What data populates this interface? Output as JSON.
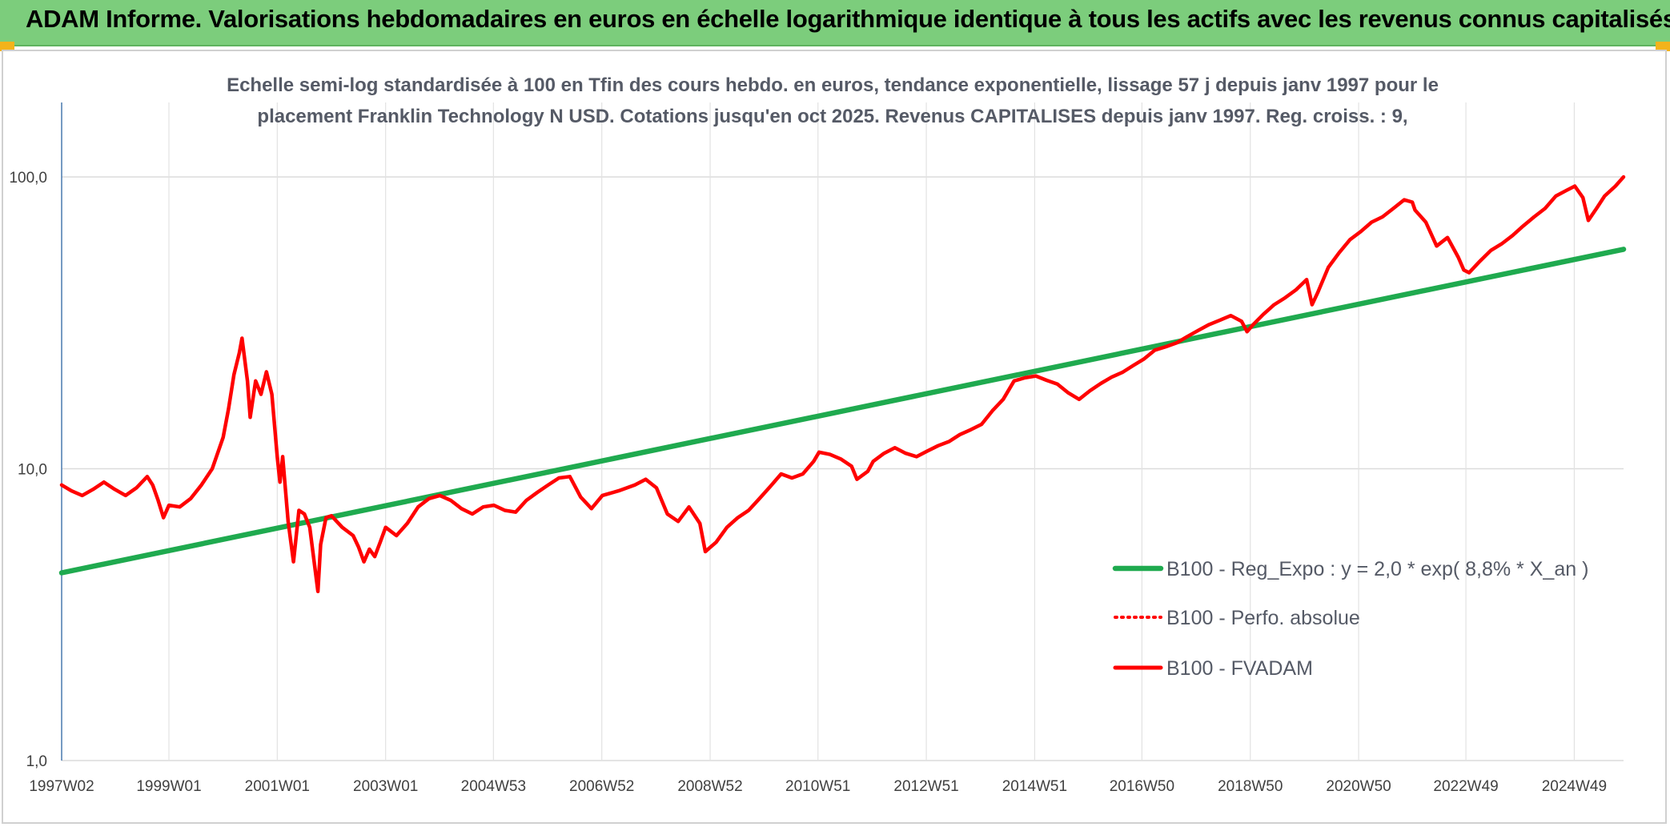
{
  "header": {
    "title": "ADAM Informe. Valorisations hebdomadaires en euros en échelle logarithmique identique à tous les actifs avec les revenus connus capitalisés"
  },
  "colors": {
    "banner": "#7ccd7c",
    "accent_corner": "#f3b31b",
    "trend": "#1faa4f",
    "perf": "#ff0000"
  },
  "chart_data": {
    "type": "line",
    "title_lines": [
      "Echelle semi-log standardisée à 100 en Tfin des cours hebdo. en euros, tendance exponentielle, lissage 57 j depuis janv 1997 pour le",
      "placement Franklin Technology N USD. Cotations jusqu'en oct 2025. Revenus CAPITALISES depuis janv 1997. Reg. croiss. : 9,"
    ],
    "y_scale": "log",
    "ylim": [
      1,
      180
    ],
    "y_ticks": [
      {
        "value": 1,
        "label": "1,0"
      },
      {
        "value": 10,
        "label": "10,0"
      },
      {
        "value": 100,
        "label": "100,0"
      }
    ],
    "xlim": [
      1997.02,
      2025.85
    ],
    "x_ticks": [
      {
        "value": 1997.02,
        "label": "1997W02"
      },
      {
        "value": 1999.0,
        "label": "1999W01"
      },
      {
        "value": 2001.0,
        "label": "2001W01"
      },
      {
        "value": 2003.0,
        "label": "2003W01"
      },
      {
        "value": 2004.99,
        "label": "2004W53"
      },
      {
        "value": 2006.99,
        "label": "2006W52"
      },
      {
        "value": 2008.99,
        "label": "2008W52"
      },
      {
        "value": 2010.98,
        "label": "2010W51"
      },
      {
        "value": 2012.98,
        "label": "2012W51"
      },
      {
        "value": 2014.98,
        "label": "2014W51"
      },
      {
        "value": 2016.96,
        "label": "2016W50"
      },
      {
        "value": 2018.96,
        "label": "2018W50"
      },
      {
        "value": 2020.96,
        "label": "2020W50"
      },
      {
        "value": 2022.94,
        "label": "2022W49"
      },
      {
        "value": 2024.94,
        "label": "2024W49"
      }
    ],
    "grid": true,
    "legend_position": "bottom-right",
    "series": [
      {
        "name": "B100 - Reg_Expo : y = 2,0 * exp( 8,8% *  X_an )",
        "style": "solid-thick",
        "color": "#1faa4f",
        "points": [
          [
            1997.02,
            4.4
          ],
          [
            2025.85,
            56.5
          ]
        ]
      },
      {
        "name": "B100 - Perfo. absolue",
        "style": "dotted",
        "color": "#ff0000",
        "points": []
      },
      {
        "name": "B100 - FVADAM",
        "style": "solid",
        "color": "#ff0000",
        "points": [
          [
            1997.02,
            8.8
          ],
          [
            1997.2,
            8.4
          ],
          [
            1997.4,
            8.1
          ],
          [
            1997.6,
            8.5
          ],
          [
            1997.8,
            9.0
          ],
          [
            1998.0,
            8.5
          ],
          [
            1998.2,
            8.1
          ],
          [
            1998.4,
            8.6
          ],
          [
            1998.6,
            9.4
          ],
          [
            1998.7,
            8.8
          ],
          [
            1998.8,
            7.8
          ],
          [
            1998.9,
            6.8
          ],
          [
            1999.0,
            7.5
          ],
          [
            1999.2,
            7.4
          ],
          [
            1999.4,
            7.9
          ],
          [
            1999.6,
            8.8
          ],
          [
            1999.8,
            10.0
          ],
          [
            2000.0,
            12.8
          ],
          [
            2000.1,
            16.0
          ],
          [
            2000.2,
            21.0
          ],
          [
            2000.3,
            25.0
          ],
          [
            2000.35,
            28.0
          ],
          [
            2000.45,
            20.0
          ],
          [
            2000.5,
            15.0
          ],
          [
            2000.6,
            20.0
          ],
          [
            2000.7,
            18.0
          ],
          [
            2000.8,
            21.5
          ],
          [
            2000.9,
            18.0
          ],
          [
            2001.0,
            11.0
          ],
          [
            2001.05,
            9.0
          ],
          [
            2001.1,
            11.0
          ],
          [
            2001.2,
            6.6
          ],
          [
            2001.3,
            4.8
          ],
          [
            2001.4,
            7.2
          ],
          [
            2001.5,
            7.0
          ],
          [
            2001.6,
            6.3
          ],
          [
            2001.7,
            4.5
          ],
          [
            2001.75,
            3.8
          ],
          [
            2001.8,
            5.5
          ],
          [
            2001.9,
            6.8
          ],
          [
            2002.0,
            6.9
          ],
          [
            2002.2,
            6.3
          ],
          [
            2002.4,
            5.9
          ],
          [
            2002.5,
            5.4
          ],
          [
            2002.6,
            4.8
          ],
          [
            2002.7,
            5.3
          ],
          [
            2002.8,
            5.0
          ],
          [
            2002.9,
            5.6
          ],
          [
            2003.0,
            6.3
          ],
          [
            2003.2,
            5.9
          ],
          [
            2003.4,
            6.5
          ],
          [
            2003.6,
            7.4
          ],
          [
            2003.8,
            7.9
          ],
          [
            2004.0,
            8.1
          ],
          [
            2004.2,
            7.8
          ],
          [
            2004.4,
            7.3
          ],
          [
            2004.6,
            7.0
          ],
          [
            2004.8,
            7.4
          ],
          [
            2005.0,
            7.5
          ],
          [
            2005.2,
            7.2
          ],
          [
            2005.4,
            7.1
          ],
          [
            2005.6,
            7.8
          ],
          [
            2005.8,
            8.3
          ],
          [
            2006.0,
            8.8
          ],
          [
            2006.2,
            9.3
          ],
          [
            2006.4,
            9.4
          ],
          [
            2006.6,
            8.0
          ],
          [
            2006.8,
            7.3
          ],
          [
            2007.0,
            8.1
          ],
          [
            2007.3,
            8.4
          ],
          [
            2007.6,
            8.8
          ],
          [
            2007.8,
            9.2
          ],
          [
            2008.0,
            8.6
          ],
          [
            2008.2,
            7.0
          ],
          [
            2008.4,
            6.6
          ],
          [
            2008.6,
            7.4
          ],
          [
            2008.8,
            6.5
          ],
          [
            2008.9,
            5.2
          ],
          [
            2009.1,
            5.6
          ],
          [
            2009.3,
            6.3
          ],
          [
            2009.5,
            6.8
          ],
          [
            2009.7,
            7.2
          ],
          [
            2009.9,
            7.9
          ],
          [
            2010.1,
            8.7
          ],
          [
            2010.3,
            9.6
          ],
          [
            2010.5,
            9.3
          ],
          [
            2010.7,
            9.6
          ],
          [
            2010.9,
            10.6
          ],
          [
            2011.0,
            11.4
          ],
          [
            2011.2,
            11.2
          ],
          [
            2011.4,
            10.8
          ],
          [
            2011.6,
            10.2
          ],
          [
            2011.7,
            9.2
          ],
          [
            2011.9,
            9.8
          ],
          [
            2012.0,
            10.6
          ],
          [
            2012.2,
            11.3
          ],
          [
            2012.4,
            11.8
          ],
          [
            2012.6,
            11.3
          ],
          [
            2012.8,
            11.0
          ],
          [
            2013.0,
            11.5
          ],
          [
            2013.2,
            12.0
          ],
          [
            2013.4,
            12.4
          ],
          [
            2013.6,
            13.1
          ],
          [
            2013.8,
            13.6
          ],
          [
            2014.0,
            14.2
          ],
          [
            2014.2,
            15.8
          ],
          [
            2014.4,
            17.3
          ],
          [
            2014.6,
            20.0
          ],
          [
            2014.8,
            20.5
          ],
          [
            2015.0,
            20.8
          ],
          [
            2015.2,
            20.1
          ],
          [
            2015.4,
            19.5
          ],
          [
            2015.6,
            18.2
          ],
          [
            2015.8,
            17.3
          ],
          [
            2016.0,
            18.5
          ],
          [
            2016.2,
            19.6
          ],
          [
            2016.4,
            20.6
          ],
          [
            2016.6,
            21.4
          ],
          [
            2016.8,
            22.6
          ],
          [
            2017.0,
            23.8
          ],
          [
            2017.2,
            25.5
          ],
          [
            2017.4,
            26.2
          ],
          [
            2017.6,
            27.0
          ],
          [
            2017.8,
            28.4
          ],
          [
            2018.0,
            29.8
          ],
          [
            2018.2,
            31.2
          ],
          [
            2018.4,
            32.3
          ],
          [
            2018.6,
            33.5
          ],
          [
            2018.8,
            32.0
          ],
          [
            2018.9,
            29.5
          ],
          [
            2019.0,
            31.0
          ],
          [
            2019.2,
            33.8
          ],
          [
            2019.4,
            36.5
          ],
          [
            2019.6,
            38.5
          ],
          [
            2019.8,
            41.0
          ],
          [
            2020.0,
            44.5
          ],
          [
            2020.1,
            36.5
          ],
          [
            2020.2,
            40.0
          ],
          [
            2020.4,
            49.0
          ],
          [
            2020.6,
            55.0
          ],
          [
            2020.8,
            61.0
          ],
          [
            2021.0,
            65.0
          ],
          [
            2021.2,
            70.0
          ],
          [
            2021.4,
            73.0
          ],
          [
            2021.6,
            78.0
          ],
          [
            2021.8,
            83.5
          ],
          [
            2021.95,
            82.0
          ],
          [
            2022.0,
            77.0
          ],
          [
            2022.2,
            70.0
          ],
          [
            2022.4,
            58.0
          ],
          [
            2022.6,
            62.0
          ],
          [
            2022.8,
            53.0
          ],
          [
            2022.9,
            48.0
          ],
          [
            2023.0,
            47.0
          ],
          [
            2023.2,
            51.5
          ],
          [
            2023.4,
            56.0
          ],
          [
            2023.6,
            59.0
          ],
          [
            2023.8,
            63.0
          ],
          [
            2024.0,
            68.0
          ],
          [
            2024.2,
            73.0
          ],
          [
            2024.4,
            78.0
          ],
          [
            2024.6,
            86.0
          ],
          [
            2024.8,
            90.0
          ],
          [
            2024.95,
            93.0
          ],
          [
            2025.1,
            85.0
          ],
          [
            2025.2,
            71.0
          ],
          [
            2025.35,
            78.0
          ],
          [
            2025.5,
            86.0
          ],
          [
            2025.7,
            93.0
          ],
          [
            2025.85,
            100.0
          ]
        ]
      }
    ]
  }
}
